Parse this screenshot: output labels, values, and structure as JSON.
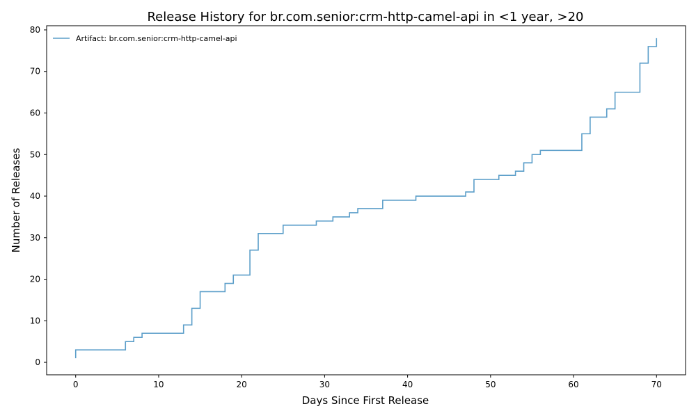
{
  "chart_data": {
    "type": "line",
    "step": true,
    "title": "Release History for br.com.senior:crm-http-camel-api in <1 year, >20",
    "xlabel": "Days Since First Release",
    "ylabel": "Number of Releases",
    "xlim": [
      -3.5,
      73.5
    ],
    "ylim": [
      -3,
      81
    ],
    "xticks": [
      0,
      10,
      20,
      30,
      40,
      50,
      60,
      70
    ],
    "yticks": [
      0,
      10,
      20,
      30,
      40,
      50,
      60,
      70,
      80
    ],
    "grid": false,
    "legend": {
      "placement": "top-left"
    },
    "series": [
      {
        "name": "Artifact: br.com.senior:crm-http-camel-api",
        "color": "#5b9ec9",
        "x": [
          0,
          0,
          6,
          7,
          8,
          13,
          14,
          15,
          18,
          19,
          21,
          22,
          25,
          29,
          31,
          33,
          34,
          37,
          41,
          47,
          48,
          51,
          53,
          54,
          55,
          56,
          61,
          62,
          64,
          65,
          68,
          69,
          70
        ],
        "y": [
          1,
          3,
          5,
          6,
          7,
          9,
          13,
          17,
          19,
          21,
          27,
          31,
          33,
          34,
          35,
          36,
          37,
          39,
          40,
          41,
          44,
          45,
          46,
          48,
          50,
          51,
          55,
          59,
          61,
          65,
          72,
          76,
          78
        ]
      }
    ]
  }
}
